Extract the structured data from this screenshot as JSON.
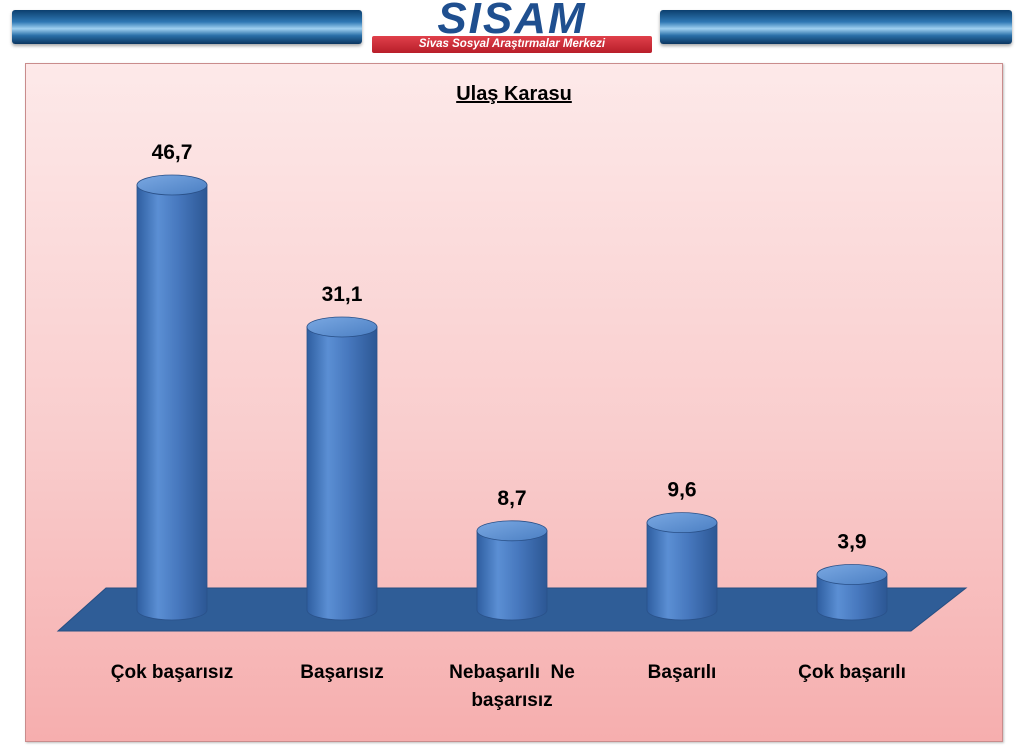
{
  "header": {
    "logo_text": "SİSAM",
    "logo_subtitle": "Sivas Sosyal Araştırmalar Merkezi"
  },
  "chart_data": {
    "type": "bar",
    "title": "Ulaş Karasu",
    "categories": [
      "Çok başarısız",
      "Başarısız",
      "Nebaşarılı  Ne başarısız",
      "Başarılı",
      "Çok başarılı"
    ],
    "values": [
      46.7,
      31.1,
      8.7,
      9.6,
      3.9
    ],
    "value_labels": [
      "46,7",
      "31,1",
      "8,7",
      "9,6",
      "3,9"
    ],
    "category_label_lines": [
      [
        "Çok başarısız"
      ],
      [
        "Başarısız"
      ],
      [
        "Nebaşarılı  Ne",
        "başarısız"
      ],
      [
        "Başarılı"
      ],
      [
        "Çok başarılı"
      ]
    ],
    "xlabel": "",
    "ylabel": "",
    "grid": false,
    "legend": "none",
    "style": "3d-cylinder",
    "colors": {
      "bar": "#4a7fc4",
      "bar_top": "#5d92d6",
      "floor": "#2f5d97",
      "label": "#000000"
    }
  }
}
